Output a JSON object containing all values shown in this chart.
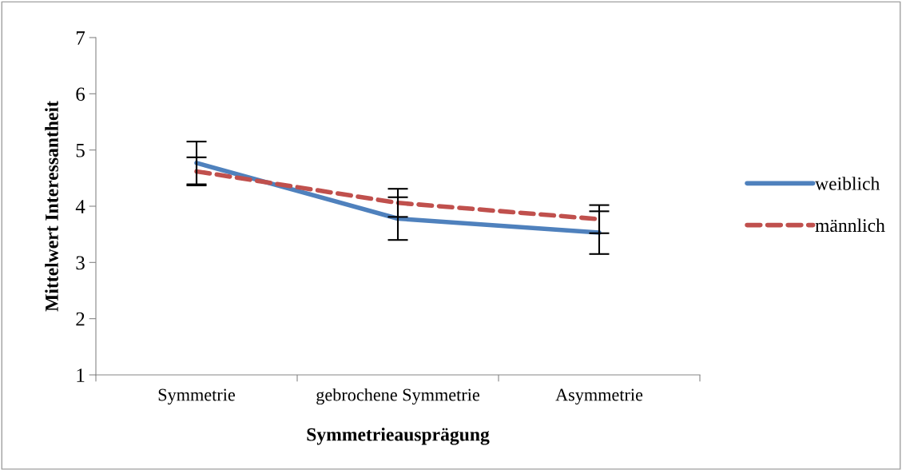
{
  "chart_data": {
    "type": "line",
    "xlabel": "Symmetrieausprägung",
    "ylabel": "Mittelwert Interessantheit",
    "categories": [
      "Symmetrie",
      "gebrochene Symmetrie",
      "Asymmetrie"
    ],
    "series": [
      {
        "name": "weiblich",
        "color": "#4f81bd",
        "values": [
          4.77,
          3.78,
          3.53
        ],
        "errors": [
          0.38,
          0.38,
          0.38
        ],
        "line_style": "solid"
      },
      {
        "name": "männlich",
        "color": "#c0504d",
        "values": [
          4.62,
          4.06,
          3.77
        ],
        "errors": [
          0.25,
          0.25,
          0.25
        ],
        "line_style": "dashed"
      }
    ],
    "ylim": [
      1,
      7
    ],
    "yticks": [
      1,
      2,
      3,
      4,
      5,
      6,
      7
    ],
    "grid": false,
    "legend": "right",
    "marker": "none"
  }
}
